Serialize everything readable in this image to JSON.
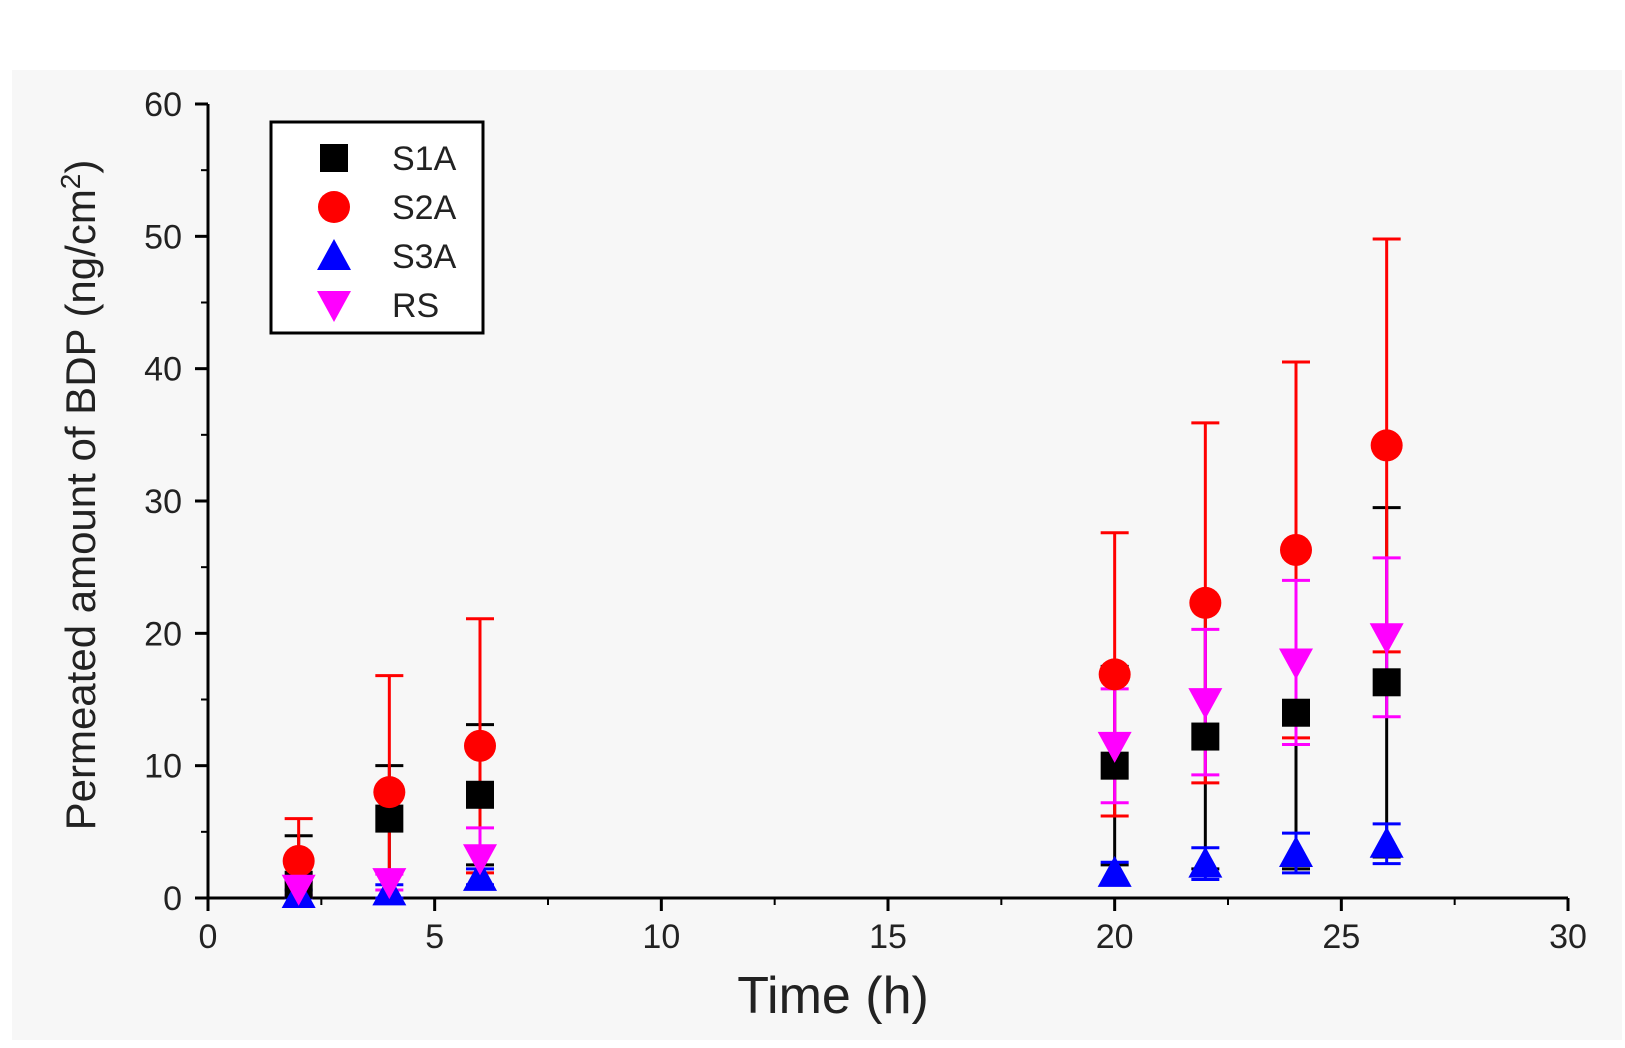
{
  "chart_data": {
    "type": "scatter",
    "xlabel": "Time (h)",
    "ylabel_main": "Permeated amount of BDP (ng/cm",
    "ylabel_sup": "2",
    "ylabel_tail": ")",
    "xlim": [
      0,
      30
    ],
    "ylim": [
      0,
      60
    ],
    "xticks": [
      0,
      5,
      10,
      15,
      20,
      25,
      30
    ],
    "yticks": [
      0,
      10,
      20,
      30,
      40,
      50,
      60
    ],
    "grid": false,
    "legend_position": "top-left",
    "error_bars": true,
    "series": [
      {
        "name": "S1A",
        "marker": "square",
        "color": "#000000",
        "x": [
          2,
          4,
          6,
          20,
          22,
          24,
          26
        ],
        "y": [
          1.0,
          6.0,
          7.8,
          10.0,
          12.2,
          14.0,
          16.3
        ],
        "err": [
          3.7,
          4.0,
          5.3,
          7.5,
          10.0,
          11.8,
          13.2
        ]
      },
      {
        "name": "S2A",
        "marker": "circle",
        "color": "#ff0000",
        "x": [
          2,
          4,
          6,
          20,
          22,
          24,
          26
        ],
        "y": [
          2.8,
          8.0,
          11.5,
          16.9,
          22.3,
          26.3,
          34.2
        ],
        "err": [
          3.2,
          8.8,
          9.6,
          10.7,
          13.6,
          14.2,
          15.6
        ]
      },
      {
        "name": "S3A",
        "marker": "triangle-up",
        "color": "#0000ff",
        "x": [
          2,
          4,
          6,
          20,
          22,
          24,
          26
        ],
        "y": [
          0.3,
          0.5,
          1.6,
          1.9,
          2.6,
          3.4,
          4.1
        ],
        "err": [
          0.3,
          0.5,
          0.6,
          0.8,
          1.2,
          1.5,
          1.5
        ]
      },
      {
        "name": "RS",
        "marker": "triangle-down",
        "color": "#ff00ff",
        "x": [
          2,
          4,
          6,
          20,
          22,
          24,
          26
        ],
        "y": [
          0.7,
          1.2,
          3.0,
          11.5,
          14.8,
          17.8,
          19.7
        ],
        "err": [
          0.5,
          0.6,
          2.3,
          4.3,
          5.5,
          6.2,
          6.0
        ]
      }
    ]
  }
}
